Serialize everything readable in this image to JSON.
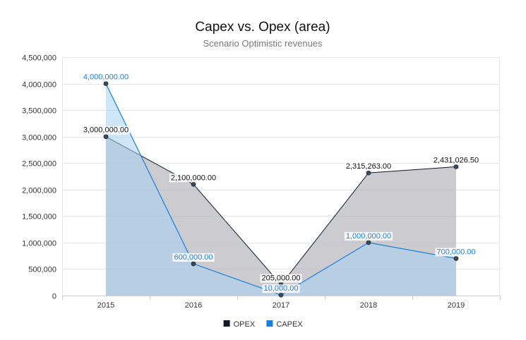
{
  "chart_data": {
    "type": "area",
    "title": "Capex vs. Opex (area)",
    "subtitle": "Scenario Optimistic revenues",
    "categories": [
      "2015",
      "2016",
      "2017",
      "2018",
      "2019"
    ],
    "ylim": [
      0,
      4500000
    ],
    "y_ticks": [
      0,
      500000,
      1000000,
      1500000,
      2000000,
      2500000,
      3000000,
      3500000,
      4000000,
      4500000
    ],
    "y_tick_labels": [
      "0",
      "500,000",
      "1,000,000",
      "1,500,000",
      "2,000,000",
      "2,500,000",
      "3,000,000",
      "3,500,000",
      "4,000,000",
      "4,500,000"
    ],
    "grid": true,
    "legend_position": "bottom",
    "series": [
      {
        "name": "OPEX",
        "color": "#111827",
        "fill": "#b8b9be",
        "values": [
          3000000,
          2100000,
          205000,
          2315263,
          2431026.5
        ],
        "labels": [
          "3,000,000.00",
          "2,100,000.00",
          "205,000.00",
          "2,315,263.00",
          "2,431,026.50"
        ]
      },
      {
        "name": "CAPEX",
        "color": "#1a7fe0",
        "fill": "#a8d2f2",
        "values": [
          4000000,
          600000,
          10000,
          1000000,
          700000
        ],
        "labels": [
          "4,000,000.00",
          "600,000.00",
          "10,000.00",
          "1,000,000.00",
          "700,000.00"
        ]
      }
    ]
  }
}
